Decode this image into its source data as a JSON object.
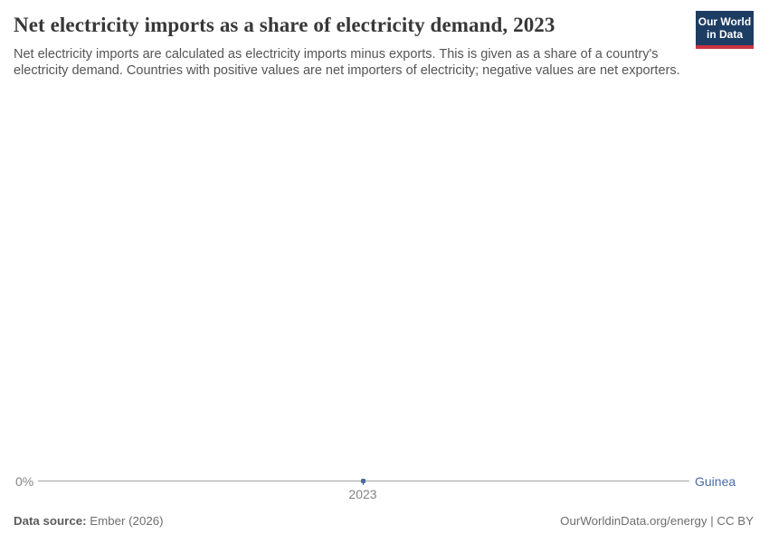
{
  "header": {
    "title": "Net electricity imports as a share of electricity demand, 2023",
    "subtitle": "Net electricity imports are calculated as electricity imports minus exports. This is given as a share of a country's electricity demand. Countries with positive values are net importers of electricity; negative values are net exporters.",
    "logo": {
      "line1": "Our World",
      "line2": "in Data"
    }
  },
  "chart_data": {
    "type": "line",
    "title": "Net electricity imports as a share of electricity demand, 2023",
    "x": [
      2023
    ],
    "series": [
      {
        "name": "Guinea",
        "values": [
          0
        ]
      }
    ],
    "unit": "%",
    "x_tick_labels": [
      "2023"
    ],
    "y_tick_labels": [
      "0%"
    ],
    "grid": false,
    "legend_position": "right-end-of-line",
    "xlabel": "",
    "ylabel": ""
  },
  "axis": {
    "y_zero_label": "0%",
    "x_tick_label": "2023"
  },
  "colors": {
    "series_blue": "#4a69a5",
    "axis_gray": "#a3a3a3",
    "logo_background": "#1d3d63",
    "logo_stripe": "#cb3240",
    "title_text": "#383838",
    "subtitle_text": "#555555",
    "tick_text": "#848484",
    "footer_text": "#6e6e6e"
  },
  "footer": {
    "source_label": "Data source:",
    "source_value": "Ember (2026)",
    "credit": "OurWorldinData.org/energy | CC BY"
  }
}
